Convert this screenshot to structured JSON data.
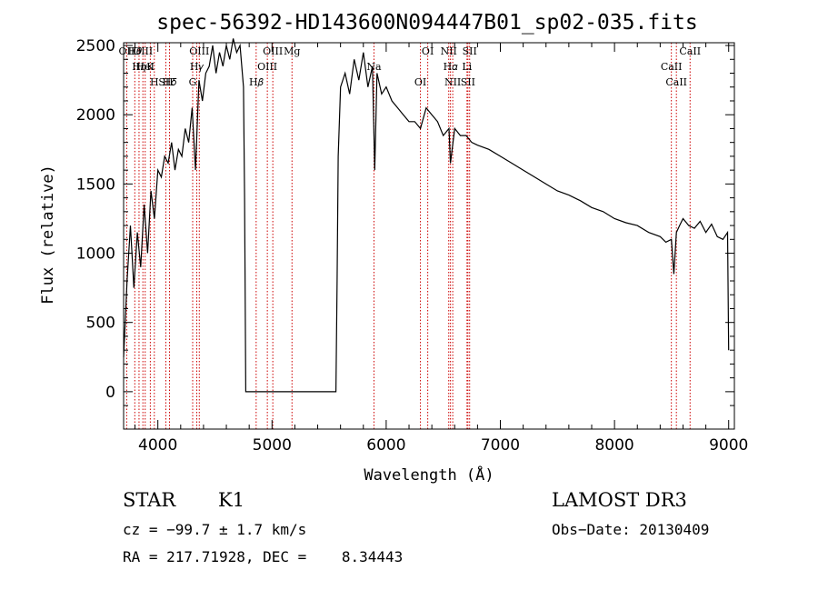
{
  "chart_data": {
    "type": "line",
    "title": "spec-56392-HD143600N094447B01_sp02-035.fits",
    "xlabel": "Wavelength (Å)",
    "ylabel": "Flux (relative)",
    "xlim": [
      3700,
      9050
    ],
    "ylim": [
      -270,
      2520
    ],
    "xticks": [
      4000,
      5000,
      6000,
      7000,
      8000,
      9000
    ],
    "yticks": [
      0,
      500,
      1000,
      1500,
      2000,
      2500
    ],
    "grid": false,
    "series": [
      {
        "x": [
          3700,
          3730,
          3760,
          3790,
          3820,
          3850,
          3880,
          3910,
          3940,
          3970,
          4000,
          4030,
          4060,
          4090,
          4120,
          4150,
          4180,
          4210,
          4240,
          4270,
          4300,
          4330,
          4360,
          4390,
          4420,
          4450,
          4480,
          4510,
          4540,
          4570,
          4600,
          4630,
          4660,
          4690,
          4720,
          4750,
          4760,
          4770,
          4780,
          5560,
          5570,
          5580,
          5600,
          5640,
          5680,
          5720,
          5760,
          5800,
          5840,
          5880,
          5900,
          5920,
          5960,
          6000,
          6050,
          6100,
          6150,
          6200,
          6250,
          6300,
          6350,
          6400,
          6450,
          6500,
          6550,
          6563,
          6600,
          6650,
          6700,
          6750,
          6800,
          6900,
          7000,
          7100,
          7200,
          7300,
          7400,
          7500,
          7600,
          7700,
          7800,
          7900,
          8000,
          8100,
          8200,
          8300,
          8400,
          8450,
          8498,
          8520,
          8542,
          8570,
          8600,
          8650,
          8700,
          8750,
          8800,
          8850,
          8900,
          8950,
          8990,
          9000
        ],
        "y": [
          250,
          800,
          1200,
          750,
          1150,
          900,
          1350,
          1000,
          1450,
          1250,
          1600,
          1550,
          1700,
          1650,
          1800,
          1600,
          1750,
          1700,
          1900,
          1800,
          2050,
          1600,
          2250,
          2100,
          2300,
          2350,
          2500,
          2300,
          2450,
          2350,
          2500,
          2400,
          2550,
          2450,
          2500,
          2200,
          1400,
          0,
          0,
          0,
          800,
          1700,
          2200,
          2300,
          2150,
          2400,
          2250,
          2450,
          2200,
          2350,
          1600,
          2300,
          2150,
          2200,
          2100,
          2050,
          2000,
          1950,
          1950,
          1900,
          2050,
          2000,
          1950,
          1850,
          1900,
          1650,
          1900,
          1850,
          1850,
          1800,
          1780,
          1750,
          1700,
          1650,
          1600,
          1550,
          1500,
          1450,
          1420,
          1380,
          1330,
          1300,
          1250,
          1220,
          1200,
          1150,
          1120,
          1080,
          1100,
          850,
          1150,
          1200,
          1250,
          1200,
          1180,
          1230,
          1150,
          1210,
          1120,
          1100,
          1150,
          300
        ]
      }
    ],
    "lines": [
      {
        "name": "H𝜃",
        "wl": 3798
      },
      {
        "name": "K",
        "wl": 3934
      },
      {
        "name": "H𝛿",
        "wl": 4102
      },
      {
        "name": "OII",
        "wl": 3727
      },
      {
        "name": "HeI",
        "wl": 3889
      },
      {
        "name": "SII",
        "wl": 4070
      },
      {
        "name": "OIII",
        "wl": 3869
      },
      {
        "name": "H𝜂",
        "wl": 3835
      },
      {
        "name": "H",
        "wl": 3969
      },
      {
        "name": "OIII",
        "wl": 4363
      },
      {
        "name": "H𝛾",
        "wl": 4341
      },
      {
        "name": "G",
        "wl": 4305
      },
      {
        "name": "OIII",
        "wl": 5007
      },
      {
        "name": "OIII",
        "wl": 4959
      },
      {
        "name": "H𝛽",
        "wl": 4861
      },
      {
        "name": "Mg",
        "wl": 5175
      },
      {
        "name": "Na",
        "wl": 5893
      },
      {
        "name": "OI",
        "wl": 6300
      },
      {
        "name": "OI",
        "wl": 6364
      },
      {
        "name": "H𝛼",
        "wl": 6563
      },
      {
        "name": "SII",
        "wl": 6716
      },
      {
        "name": "NII",
        "wl": 6548
      },
      {
        "name": "Li",
        "wl": 6708
      },
      {
        "name": "NII",
        "wl": 6583
      },
      {
        "name": "SII",
        "wl": 6731
      },
      {
        "name": "CaII",
        "wl": 8498
      },
      {
        "name": "CaII",
        "wl": 8542
      },
      {
        "name": "CaII",
        "wl": 8662
      }
    ]
  },
  "info": {
    "object_type": "STAR",
    "subclass": "K1",
    "survey": "LAMOST DR3",
    "cz": "cz = −99.7 ± 1.7 km/s",
    "obs_date": "Obs−Date: 20130409",
    "radec": "RA = 217.71928, DEC =    8.34443"
  }
}
